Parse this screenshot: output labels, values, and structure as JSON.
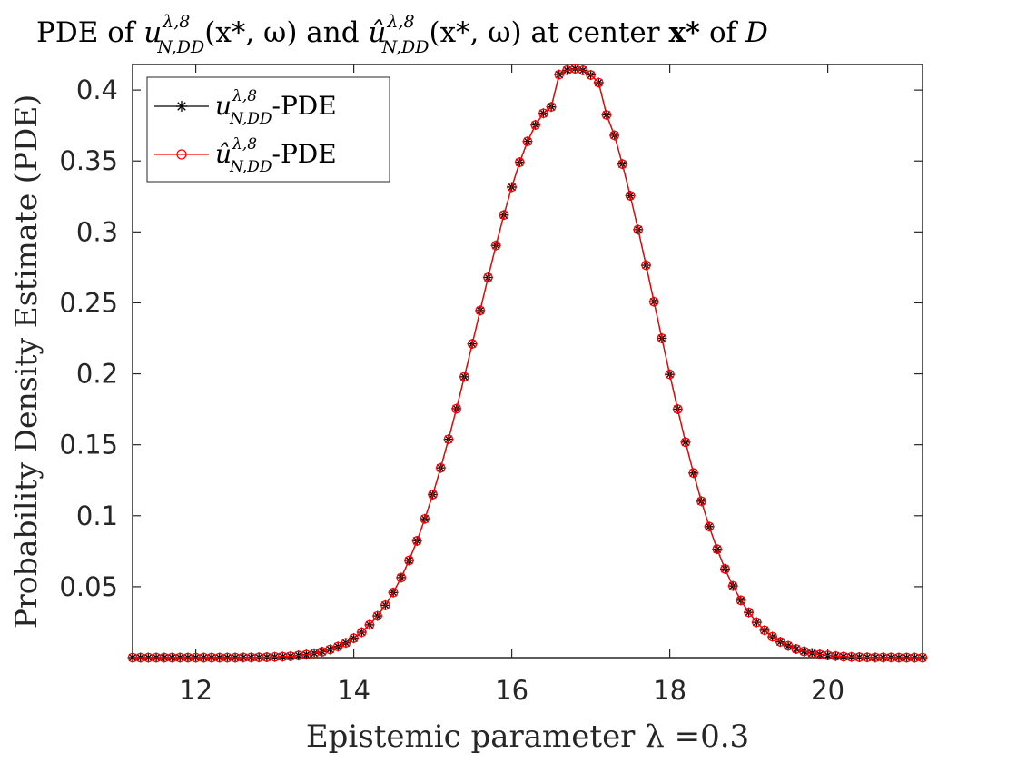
{
  "chart_data": {
    "type": "line",
    "title": "PDE of u_{N,DD}^{λ,8}(x*, ω) and û_{N,DD}^{λ,8}(x*, ω) at center x* of D",
    "title_parts": {
      "prefix": "PDE of ",
      "middle": " and ",
      "suffix": " at center ",
      "point_suffix": " of ",
      "domain": "D",
      "base": "u",
      "base_hat": "û",
      "superscript": "λ,8",
      "subscript": "N,DD",
      "args": "(x*, ω)",
      "point": "x*"
    },
    "xlabel": "Epistemic parameter λ =0.3",
    "ylabel": "Probability Density Estimate (PDE)",
    "xlim": [
      11.2,
      21.2
    ],
    "ylim": [
      0,
      0.418
    ],
    "xticks": [
      12,
      14,
      16,
      18,
      20
    ],
    "yticks": [
      0.05,
      0.1,
      0.15,
      0.2,
      0.25,
      0.3,
      0.35,
      0.4
    ],
    "ytick_labels": [
      "0.05",
      "0.1",
      "0.15",
      "0.2",
      "0.25",
      "0.3",
      "0.35",
      "0.4"
    ],
    "grid": false,
    "legend_position": "top-left",
    "colors": {
      "series1": "#000000",
      "series2": "#ff0000",
      "axis": "#262626"
    },
    "series": [
      {
        "name": "u_{N,DD}^{λ,8}-PDE",
        "label_base": "u",
        "label_superscript": "λ,8",
        "label_subscript": "N,DD",
        "label_suffix": "-PDE",
        "marker": "asterisk",
        "x_start": 11.2,
        "x_step": 0.1,
        "values": [
          0.0,
          0.0,
          0.0,
          0.0,
          0.0,
          0.0,
          0.0,
          0.0,
          0.0,
          0.0,
          0.0,
          0.0,
          0.0,
          0.0,
          0.0001,
          0.0001,
          0.0002,
          0.0003,
          0.0005,
          0.0007,
          0.001,
          0.0015,
          0.0021,
          0.003,
          0.0042,
          0.0058,
          0.0078,
          0.0104,
          0.0137,
          0.0179,
          0.0231,
          0.0294,
          0.0369,
          0.0459,
          0.0564,
          0.0685,
          0.0823,
          0.0978,
          0.1149,
          0.1337,
          0.1539,
          0.1754,
          0.1979,
          0.2211,
          0.2446,
          0.2679,
          0.2905,
          0.3119,
          0.3316,
          0.3491,
          0.3638,
          0.3754,
          0.3836,
          0.3881,
          0.4109,
          0.414,
          0.415,
          0.4139,
          0.4106,
          0.4052,
          0.3825,
          0.3681,
          0.3478,
          0.3255,
          0.3016,
          0.2765,
          0.2508,
          0.225,
          0.1996,
          0.1751,
          0.1518,
          0.1301,
          0.1102,
          0.0923,
          0.0764,
          0.0625,
          0.0505,
          0.0404,
          0.0319,
          0.0249,
          0.0193,
          0.0147,
          0.0111,
          0.0083,
          0.0061,
          0.0044,
          0.0032,
          0.0022,
          0.0016,
          0.0011,
          0.0007,
          0.0005,
          0.0003,
          0.0002,
          0.0001,
          0.0001,
          0.0001,
          0.0,
          0.0,
          0.0,
          0.0
        ]
      },
      {
        "name": "û_{N,DD}^{λ,8}-PDE",
        "label_base": "û",
        "label_superscript": "λ,8",
        "label_subscript": "N,DD",
        "label_suffix": "-PDE",
        "marker": "circle",
        "x_start": 11.2,
        "x_step": 0.1,
        "values": [
          0.0,
          0.0,
          0.0,
          0.0,
          0.0,
          0.0,
          0.0,
          0.0,
          0.0,
          0.0,
          0.0,
          0.0,
          0.0,
          0.0,
          0.0001,
          0.0001,
          0.0002,
          0.0003,
          0.0005,
          0.0007,
          0.001,
          0.0015,
          0.0021,
          0.003,
          0.0042,
          0.0058,
          0.0078,
          0.0104,
          0.0137,
          0.0179,
          0.0231,
          0.0294,
          0.0369,
          0.0459,
          0.0564,
          0.0685,
          0.0823,
          0.0978,
          0.1149,
          0.1337,
          0.1539,
          0.1754,
          0.1979,
          0.2211,
          0.2446,
          0.2679,
          0.2905,
          0.3119,
          0.3316,
          0.3491,
          0.3638,
          0.3754,
          0.3836,
          0.3881,
          0.4109,
          0.414,
          0.415,
          0.4139,
          0.4106,
          0.4052,
          0.3825,
          0.3681,
          0.3478,
          0.3255,
          0.3016,
          0.2765,
          0.2508,
          0.225,
          0.1996,
          0.1751,
          0.1518,
          0.1301,
          0.1102,
          0.0923,
          0.0764,
          0.0625,
          0.0505,
          0.0404,
          0.0319,
          0.0249,
          0.0193,
          0.0147,
          0.0111,
          0.0083,
          0.0061,
          0.0044,
          0.0032,
          0.0022,
          0.0016,
          0.0011,
          0.0007,
          0.0005,
          0.0003,
          0.0002,
          0.0001,
          0.0001,
          0.0001,
          0.0,
          0.0,
          0.0,
          0.0
        ]
      }
    ]
  }
}
